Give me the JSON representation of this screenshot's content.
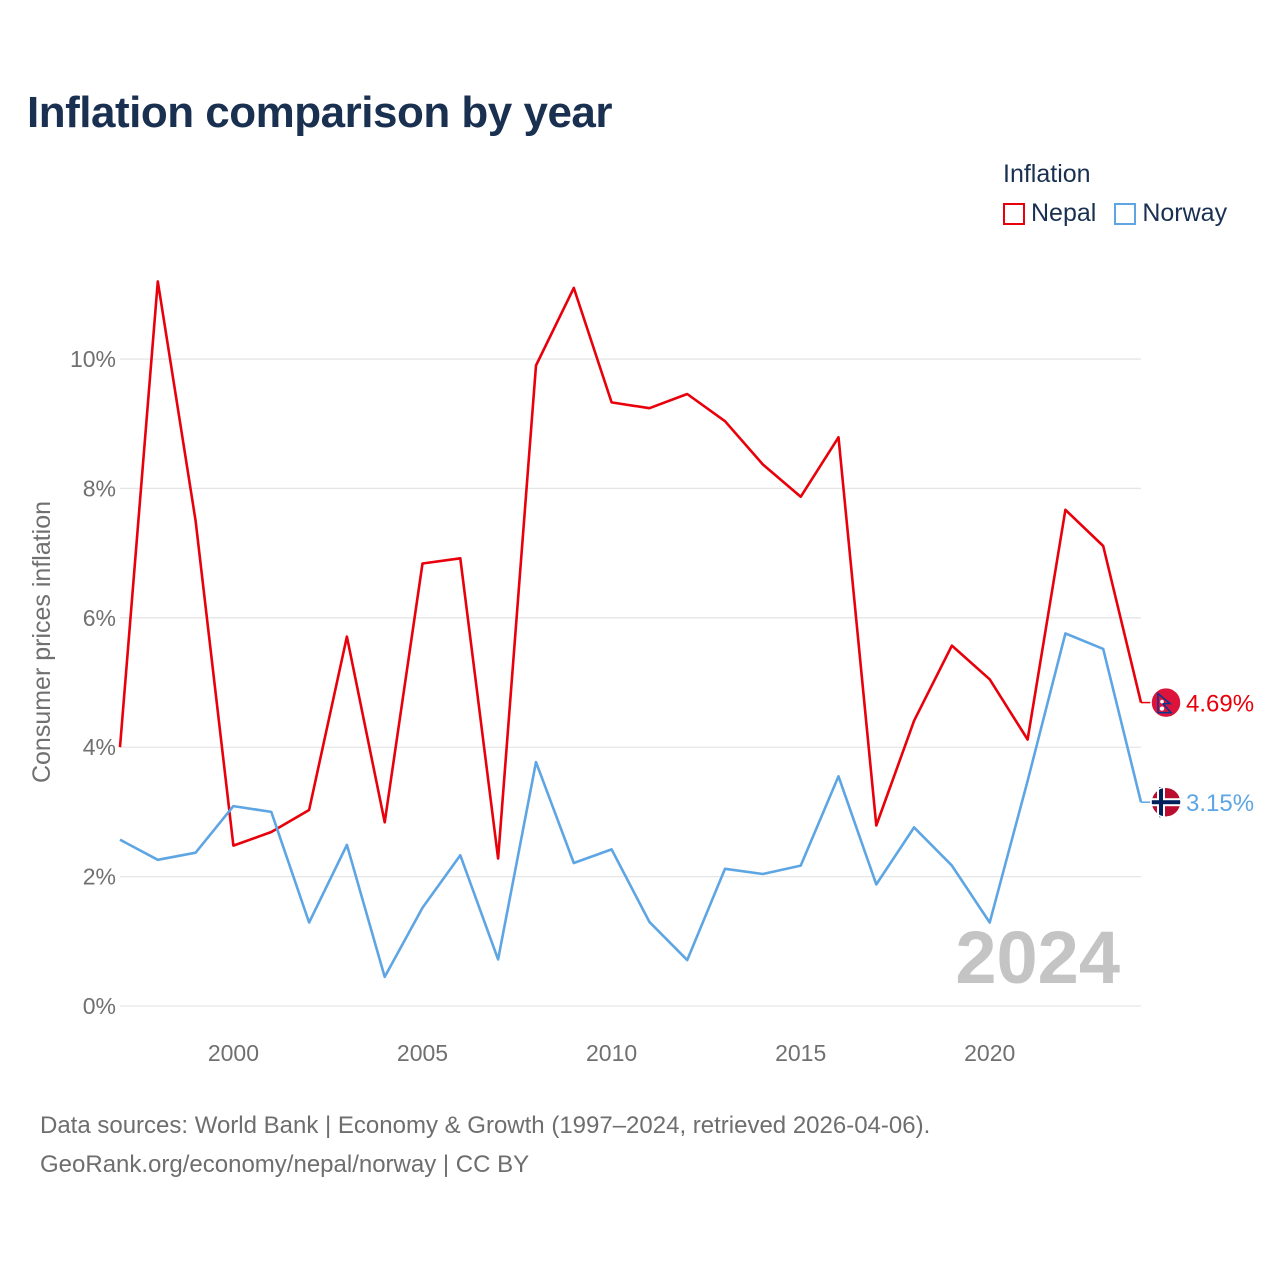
{
  "title": "Inflation comparison by year",
  "legend": {
    "title": "Inflation",
    "items": [
      {
        "name": "Nepal",
        "color": "#e8000b"
      },
      {
        "name": "Norway",
        "color": "#5ea5e3"
      }
    ]
  },
  "year_watermark": "2024",
  "source": {
    "line1": "Data sources: World Bank | Economy & Growth (1997–2024, retrieved 2026-04-06).",
    "line2": "GeoRank.org/economy/nepal/norway | CC BY"
  },
  "chart_data": {
    "type": "line",
    "title": "Inflation comparison by year",
    "xlabel": "",
    "ylabel": "Consumer prices inflation",
    "xlim": [
      1997,
      2024
    ],
    "ylim": [
      0,
      11.5
    ],
    "grid": true,
    "legend_position": "top-right",
    "x": [
      1997,
      1998,
      1999,
      2000,
      2001,
      2002,
      2003,
      2004,
      2005,
      2006,
      2007,
      2008,
      2009,
      2010,
      2011,
      2012,
      2013,
      2014,
      2015,
      2016,
      2017,
      2018,
      2019,
      2020,
      2021,
      2022,
      2023,
      2024
    ],
    "x_ticks": [
      2000,
      2005,
      2010,
      2015,
      2020
    ],
    "y_ticks": [
      0,
      2,
      4,
      6,
      8,
      10
    ],
    "y_tick_labels": [
      "0%",
      "2%",
      "4%",
      "6%",
      "8%",
      "10%"
    ],
    "series": [
      {
        "name": "Nepal",
        "color": "#e8000b",
        "values": [
          4.0,
          11.2,
          7.5,
          2.48,
          2.69,
          3.03,
          5.71,
          2.84,
          6.84,
          6.92,
          2.28,
          9.9,
          11.1,
          9.33,
          9.24,
          9.46,
          9.04,
          8.37,
          7.87,
          8.79,
          2.79,
          4.41,
          5.57,
          5.05,
          4.12,
          7.67,
          7.11,
          4.69
        ],
        "end_label": "4.69%"
      },
      {
        "name": "Norway",
        "color": "#5ea5e3",
        "values": [
          2.57,
          2.26,
          2.37,
          3.09,
          3.0,
          1.29,
          2.49,
          0.45,
          1.52,
          2.33,
          0.72,
          3.77,
          2.21,
          2.42,
          1.3,
          0.71,
          2.12,
          2.04,
          2.17,
          3.55,
          1.88,
          2.76,
          2.17,
          1.29,
          3.48,
          5.76,
          5.52,
          3.15
        ],
        "end_label": "3.15%"
      }
    ]
  }
}
